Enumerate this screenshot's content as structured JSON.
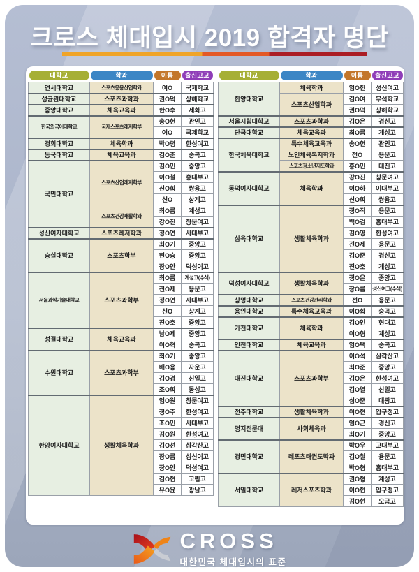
{
  "title": "크로스 체대입시 2019 합격자 명단",
  "table_headers": [
    "대학교",
    "학과",
    "이름",
    "출신고교"
  ],
  "header_colors": [
    "#a6af35",
    "#3c86c5",
    "#c3762a",
    "#8f3db8"
  ],
  "underline_colors": [
    "#f0a428",
    "#e45926",
    "#ab1d24"
  ],
  "footer": {
    "brand": "CROSS",
    "tagline": "대한민국 체대입시의 표준"
  },
  "left_table": {
    "groups": [
      {
        "university": "연세대학교",
        "departments": [
          {
            "department": "스포츠응용산업학과",
            "students": [
              [
                "여O",
                "국제학교"
              ]
            ]
          }
        ]
      },
      {
        "university": "성균관대학교",
        "departments": [
          {
            "department": "스포츠과학과",
            "students": [
              [
                "권O덕",
                "상해학교"
              ]
            ]
          }
        ]
      },
      {
        "university": "중앙대학교",
        "departments": [
          {
            "department": "체육교육과",
            "students": [
              [
                "한O후",
                "세화고"
              ]
            ]
          }
        ]
      },
      {
        "university": "한국외국어대학교",
        "departments": [
          {
            "department": "국제스포츠레저학부",
            "students": [
              [
                "송O헌",
                "관인고"
              ],
              [
                "여O",
                "국제학교"
              ]
            ]
          }
        ]
      },
      {
        "university": "경희대학교",
        "departments": [
          {
            "department": "체육학과",
            "students": [
              [
                "박O령",
                "한성여고"
              ]
            ]
          }
        ]
      },
      {
        "university": "동국대학교",
        "departments": [
          {
            "department": "체육교육과",
            "students": [
              [
                "김O준",
                "숭곡고"
              ]
            ]
          }
        ]
      },
      {
        "university": "국민대학교",
        "departments": [
          {
            "department": "스포츠산업레저학부",
            "students": [
              [
                "김O민",
                "중앙고"
              ],
              [
                "이O철",
                "홍대부고"
              ],
              [
                "신O희",
                "쌍용고"
              ],
              [
                "신O",
                "상계고"
              ]
            ]
          },
          {
            "department": "스포츠건강재활학과",
            "students": [
              [
                "최O름",
                "계성고"
              ],
              [
                "강O진",
                "창문여고"
              ]
            ]
          }
        ]
      },
      {
        "university": "성신여자대학교",
        "departments": [
          {
            "department": "스포츠레저학과",
            "students": [
              [
                "정O연",
                "사대부고"
              ]
            ]
          }
        ]
      },
      {
        "university": "숭실대학교",
        "departments": [
          {
            "department": "스포츠학부",
            "students": [
              [
                "최O기",
                "중앙고"
              ],
              [
                "현O승",
                "중앙고"
              ],
              [
                "장O안",
                "덕성여고"
              ]
            ]
          }
        ]
      },
      {
        "university": "서울과학기술대학교",
        "departments": [
          {
            "department": "스포츠과학부",
            "students": [
              [
                "최O름",
                "계성고(수석)"
              ],
              [
                "전O제",
                "용문고"
              ],
              [
                "정O연",
                "사대부고"
              ],
              [
                "신O",
                "상계고"
              ],
              [
                "진O호",
                "중앙고"
              ]
            ]
          }
        ]
      },
      {
        "university": "성결대학교",
        "departments": [
          {
            "department": "체육교육과",
            "students": [
              [
                "남O제",
                "중앙고"
              ],
              [
                "이O혁",
                "숭곡고"
              ]
            ]
          }
        ]
      },
      {
        "university": "수원대학교",
        "departments": [
          {
            "department": "스포츠과학부",
            "students": [
              [
                "최O기",
                "중앙고"
              ],
              [
                "배O용",
                "자운고"
              ],
              [
                "김O경",
                "신일고"
              ],
              [
                "조O희",
                "동성고"
              ]
            ]
          }
        ]
      },
      {
        "university": "한양여자대학교",
        "departments": [
          {
            "department": "생활체육학과",
            "students": [
              [
                "엄O원",
                "창문여고"
              ],
              [
                "정O주",
                "한성여고"
              ],
              [
                "조O민",
                "사대부고"
              ],
              [
                "김O원",
                "한성여고"
              ],
              [
                "김O선",
                "삼각산고"
              ],
              [
                "장O름",
                "성신여고"
              ],
              [
                "장O안",
                "덕성여고"
              ],
              [
                "김O현",
                "고림고"
              ],
              [
                "유O윤",
                "광남고"
              ]
            ]
          }
        ]
      }
    ]
  },
  "right_table": {
    "groups": [
      {
        "university": "한양대학교",
        "departments": [
          {
            "department": "체육학과",
            "students": [
              [
                "임O헌",
                "성신여고"
              ]
            ]
          },
          {
            "department": "스포츠산업학과",
            "students": [
              [
                "김O여",
                "무석학교"
              ],
              [
                "권O덕",
                "상해학교"
              ]
            ]
          }
        ]
      },
      {
        "university": "서울시립대학교",
        "departments": [
          {
            "department": "스포츠과학과",
            "students": [
              [
                "김O은",
                "경신고"
              ]
            ]
          }
        ]
      },
      {
        "university": "단국대학교",
        "departments": [
          {
            "department": "체육교육과",
            "students": [
              [
                "최O름",
                "계성고"
              ]
            ]
          }
        ]
      },
      {
        "university": "한국체육대학교",
        "departments": [
          {
            "department": "특수체육교육과",
            "students": [
              [
                "송O헌",
                "관인고"
              ]
            ]
          },
          {
            "department": "노인체육복지학과",
            "students": [
              [
                "전O",
                "용문고"
              ]
            ]
          },
          {
            "department": "스포츠청소년지도학과",
            "students": [
              [
                "홍O민",
                "대진고"
              ]
            ]
          }
        ]
      },
      {
        "university": "동덕여자대학교",
        "departments": [
          {
            "department": "체육학과",
            "students": [
              [
                "강O진",
                "창문여고"
              ],
              [
                "이O하",
                "이대부고"
              ],
              [
                "신O희",
                "쌍용고"
              ]
            ]
          }
        ]
      },
      {
        "university": "삼육대학교",
        "departments": [
          {
            "department": "생활체육학과",
            "students": [
              [
                "정O직",
                "용문고"
              ],
              [
                "백O검",
                "홍대부고"
              ],
              [
                "김O영",
                "한성여고"
              ],
              [
                "전O제",
                "용문고"
              ],
              [
                "김O준",
                "경신고"
              ],
              [
                "전O호",
                "계성고"
              ]
            ]
          }
        ]
      },
      {
        "university": "덕성여자대학교",
        "departments": [
          {
            "department": "생활체육학과",
            "students": [
              [
                "정O은",
                "중앙고"
              ],
              [
                "장O름",
                "성신여고(수석)"
              ]
            ]
          }
        ]
      },
      {
        "university": "상명대학교",
        "departments": [
          {
            "department": "스포츠건강관리학과",
            "students": [
              [
                "전O",
                "용문고"
              ]
            ]
          }
        ]
      },
      {
        "university": "용인대학교",
        "departments": [
          {
            "department": "특수체육교육과",
            "students": [
              [
                "이O화",
                "숭곡고"
              ]
            ]
          }
        ]
      },
      {
        "university": "가천대학교",
        "departments": [
          {
            "department": "체육학과",
            "students": [
              [
                "김O인",
                "현대고"
              ],
              [
                "이O형",
                "계성고"
              ]
            ]
          }
        ]
      },
      {
        "university": "인천대학교",
        "departments": [
          {
            "department": "체육교육과",
            "students": [
              [
                "임O택",
                "숭곡고"
              ]
            ]
          }
        ]
      },
      {
        "university": "대진대학교",
        "departments": [
          {
            "department": "스포츠과학부",
            "students": [
              [
                "이O석",
                "삼각산고"
              ],
              [
                "최O준",
                "중앙고"
              ],
              [
                "김O은",
                "한성여고"
              ],
              [
                "김O열",
                "신일고"
              ],
              [
                "심O준",
                "대광고"
              ]
            ]
          }
        ]
      },
      {
        "university": "전주대학교",
        "departments": [
          {
            "department": "생활체육학과",
            "students": [
              [
                "이O현",
                "압구정고"
              ]
            ]
          }
        ]
      },
      {
        "university": "명지전문대",
        "departments": [
          {
            "department": "사회체육과",
            "students": [
              [
                "엄O근",
                "경신고"
              ],
              [
                "최O기",
                "중앙고"
              ]
            ]
          }
        ]
      },
      {
        "university": "경민대학교",
        "departments": [
          {
            "department": "레포츠태권도학과",
            "students": [
              [
                "박O우",
                "고대부고"
              ],
              [
                "김O철",
                "용문고"
              ],
              [
                "박O형",
                "홍대부고"
              ]
            ]
          }
        ]
      },
      {
        "university": "서일대학교",
        "departments": [
          {
            "department": "레저스포츠학과",
            "students": [
              [
                "권O형",
                "계성고"
              ],
              [
                "이O현",
                "압구정고"
              ],
              [
                "김O현",
                "오금고"
              ]
            ]
          }
        ]
      }
    ]
  }
}
